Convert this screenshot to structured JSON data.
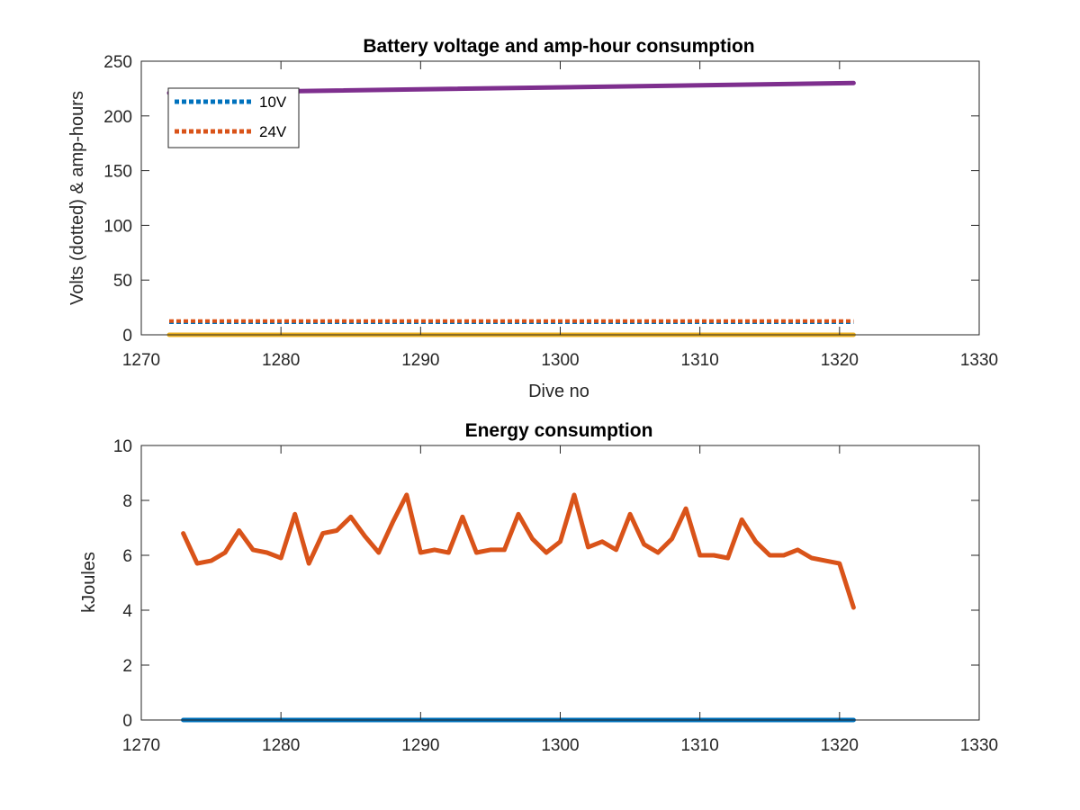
{
  "chart_data": [
    {
      "type": "line",
      "title": "Battery voltage and amp-hour consumption",
      "xlabel": "Dive no",
      "ylabel": "Volts (dotted) & amp-hours",
      "xlim": [
        1270,
        1330
      ],
      "ylim": [
        0,
        250
      ],
      "xticks": [
        1270,
        1280,
        1290,
        1300,
        1310,
        1320,
        1330
      ],
      "yticks": [
        0,
        50,
        100,
        150,
        200,
        250
      ],
      "grid": false,
      "legend_position": "top-left",
      "series": [
        {
          "name": "10V",
          "style": "dotted",
          "color": "#0072BD",
          "x": [
            1272,
            1321
          ],
          "y": [
            11.5,
            11.5
          ]
        },
        {
          "name": "24V",
          "style": "dotted",
          "color": "#D95319",
          "x": [
            1272,
            1321
          ],
          "y": [
            12.5,
            12.5
          ]
        },
        {
          "style": "solid",
          "color": "#EDB120",
          "x": [
            1272,
            1321
          ],
          "y": [
            0,
            0
          ]
        },
        {
          "style": "solid",
          "color": "#7E2F8E",
          "x": [
            1272,
            1321
          ],
          "y": [
            221,
            230
          ]
        }
      ]
    },
    {
      "type": "line",
      "title": "Energy consumption",
      "xlabel": "",
      "ylabel": "kJoules",
      "xlim": [
        1270,
        1330
      ],
      "ylim": [
        0,
        10
      ],
      "xticks": [
        1270,
        1280,
        1290,
        1300,
        1310,
        1320,
        1330
      ],
      "yticks": [
        0,
        2,
        4,
        6,
        8,
        10
      ],
      "grid": false,
      "series": [
        {
          "style": "solid",
          "color": "#0072BD",
          "x": [
            1273,
            1321
          ],
          "y": [
            0,
            0
          ]
        },
        {
          "style": "solid",
          "color": "#D95319",
          "x": [
            1273,
            1274,
            1275,
            1276,
            1277,
            1278,
            1279,
            1280,
            1281,
            1282,
            1283,
            1284,
            1285,
            1286,
            1287,
            1288,
            1289,
            1290,
            1291,
            1292,
            1293,
            1294,
            1295,
            1296,
            1297,
            1298,
            1299,
            1300,
            1301,
            1302,
            1303,
            1304,
            1305,
            1306,
            1307,
            1308,
            1309,
            1310,
            1311,
            1312,
            1313,
            1314,
            1315,
            1316,
            1317,
            1318,
            1319,
            1320,
            1321
          ],
          "y": [
            6.8,
            5.7,
            5.8,
            6.1,
            6.9,
            6.2,
            6.1,
            5.9,
            7.5,
            5.7,
            6.8,
            6.9,
            7.4,
            6.7,
            6.1,
            7.2,
            8.2,
            6.1,
            6.2,
            6.1,
            7.4,
            6.1,
            6.2,
            6.2,
            7.5,
            6.6,
            6.1,
            6.5,
            8.2,
            6.3,
            6.5,
            6.2,
            7.5,
            6.4,
            6.1,
            6.6,
            7.7,
            6.0,
            6.0,
            5.9,
            7.3,
            6.5,
            6.0,
            6.0,
            6.2,
            5.9,
            5.8,
            5.7,
            4.1
          ]
        }
      ]
    }
  ]
}
